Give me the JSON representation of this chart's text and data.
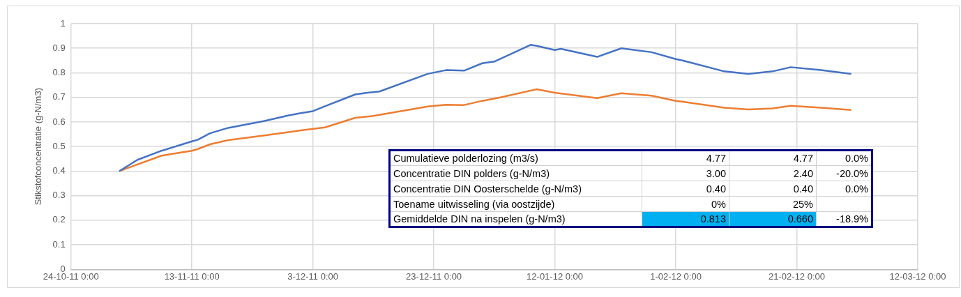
{
  "chart_data": {
    "type": "line",
    "ylabel": "Stikstofconcentratie (g-N/m3)",
    "xlim": [
      "2011-10-24",
      "2012-03-12"
    ],
    "xticks": [
      {
        "value": "2011-10-24",
        "label": "24-10-11 0:00"
      },
      {
        "value": "2011-11-13",
        "label": "13-11-11 0:00"
      },
      {
        "value": "2011-12-03",
        "label": "3-12-11 0:00"
      },
      {
        "value": "2011-12-23",
        "label": "23-12-11 0:00"
      },
      {
        "value": "2012-01-12",
        "label": "12-01-12 0:00"
      },
      {
        "value": "2012-02-01",
        "label": "1-02-12 0:00"
      },
      {
        "value": "2012-02-21",
        "label": "21-02-12 0:00"
      },
      {
        "value": "2012-03-12",
        "label": "12-03-12 0:00"
      }
    ],
    "ylim": [
      0,
      1
    ],
    "yticks": [
      0,
      0.1,
      0.2,
      0.3,
      0.4,
      0.5,
      0.6,
      0.7,
      0.8,
      0.9,
      1
    ],
    "grid": true,
    "legend": false,
    "marker": "none",
    "line_style": "solid",
    "series": [
      {
        "color": "#4472c4",
        "x": [
          "2011-11-01",
          "2011-11-04",
          "2011-11-08",
          "2011-11-13",
          "2011-11-14",
          "2011-11-16",
          "2011-11-19",
          "2011-11-25",
          "2011-11-29",
          "2011-12-01",
          "2011-12-03",
          "2011-12-05",
          "2011-12-10",
          "2011-12-12",
          "2011-12-14",
          "2011-12-22",
          "2011-12-25",
          "2011-12-28",
          "2011-12-31",
          "2012-01-02",
          "2012-01-08",
          "2012-01-09",
          "2012-01-12",
          "2012-01-13",
          "2012-01-19",
          "2012-01-23",
          "2012-01-28",
          "2012-02-01",
          "2012-02-02",
          "2012-02-09",
          "2012-02-13",
          "2012-02-17",
          "2012-02-20",
          "2012-02-25",
          "2012-03-01"
        ],
        "values": [
          0.4,
          0.446,
          0.483,
          0.521,
          0.528,
          0.554,
          0.576,
          0.604,
          0.627,
          0.636,
          0.644,
          0.664,
          0.712,
          0.719,
          0.724,
          0.796,
          0.811,
          0.809,
          0.839,
          0.846,
          0.914,
          0.91,
          0.893,
          0.898,
          0.865,
          0.9,
          0.884,
          0.856,
          0.851,
          0.806,
          0.796,
          0.806,
          0.823,
          0.811,
          0.796
        ]
      },
      {
        "color": "#ed7d31",
        "x": [
          "2011-11-01",
          "2011-11-08",
          "2011-11-13",
          "2011-11-14",
          "2011-11-16",
          "2011-11-19",
          "2011-11-25",
          "2011-11-29",
          "2011-12-01",
          "2011-12-05",
          "2011-12-10",
          "2011-12-12",
          "2011-12-13",
          "2011-12-22",
          "2011-12-25",
          "2011-12-28",
          "2011-12-31",
          "2012-01-03",
          "2012-01-09",
          "2012-01-12",
          "2012-01-19",
          "2012-01-23",
          "2012-01-28",
          "2012-02-01",
          "2012-02-02",
          "2012-02-09",
          "2012-02-13",
          "2012-02-17",
          "2012-02-20",
          "2012-02-25",
          "2012-03-01"
        ],
        "values": [
          0.4,
          0.463,
          0.483,
          0.49,
          0.509,
          0.526,
          0.545,
          0.559,
          0.566,
          0.578,
          0.617,
          0.622,
          0.625,
          0.663,
          0.67,
          0.669,
          0.686,
          0.7,
          0.733,
          0.719,
          0.697,
          0.717,
          0.707,
          0.686,
          0.683,
          0.658,
          0.651,
          0.655,
          0.666,
          0.658,
          0.649
        ]
      }
    ],
    "annotations": [
      "Cumulatieve polderlozing (m3/s)\t4.77\t4.77\t0.0%",
      "Concentratie DIN polders (g-N/m3)\t3.00\t2.40\t-20.0%",
      "Concentratie DIN Oosterschelde (g-N/m3)\t0.40\t0.40\t0.0%",
      "Toename uitwisseling (via oostzijde)\t0%\t25%\t",
      "Gemiddelde DIN na inspelen (g-N/m3)\t0.813\t0.660\t-18.9%"
    ]
  }
}
